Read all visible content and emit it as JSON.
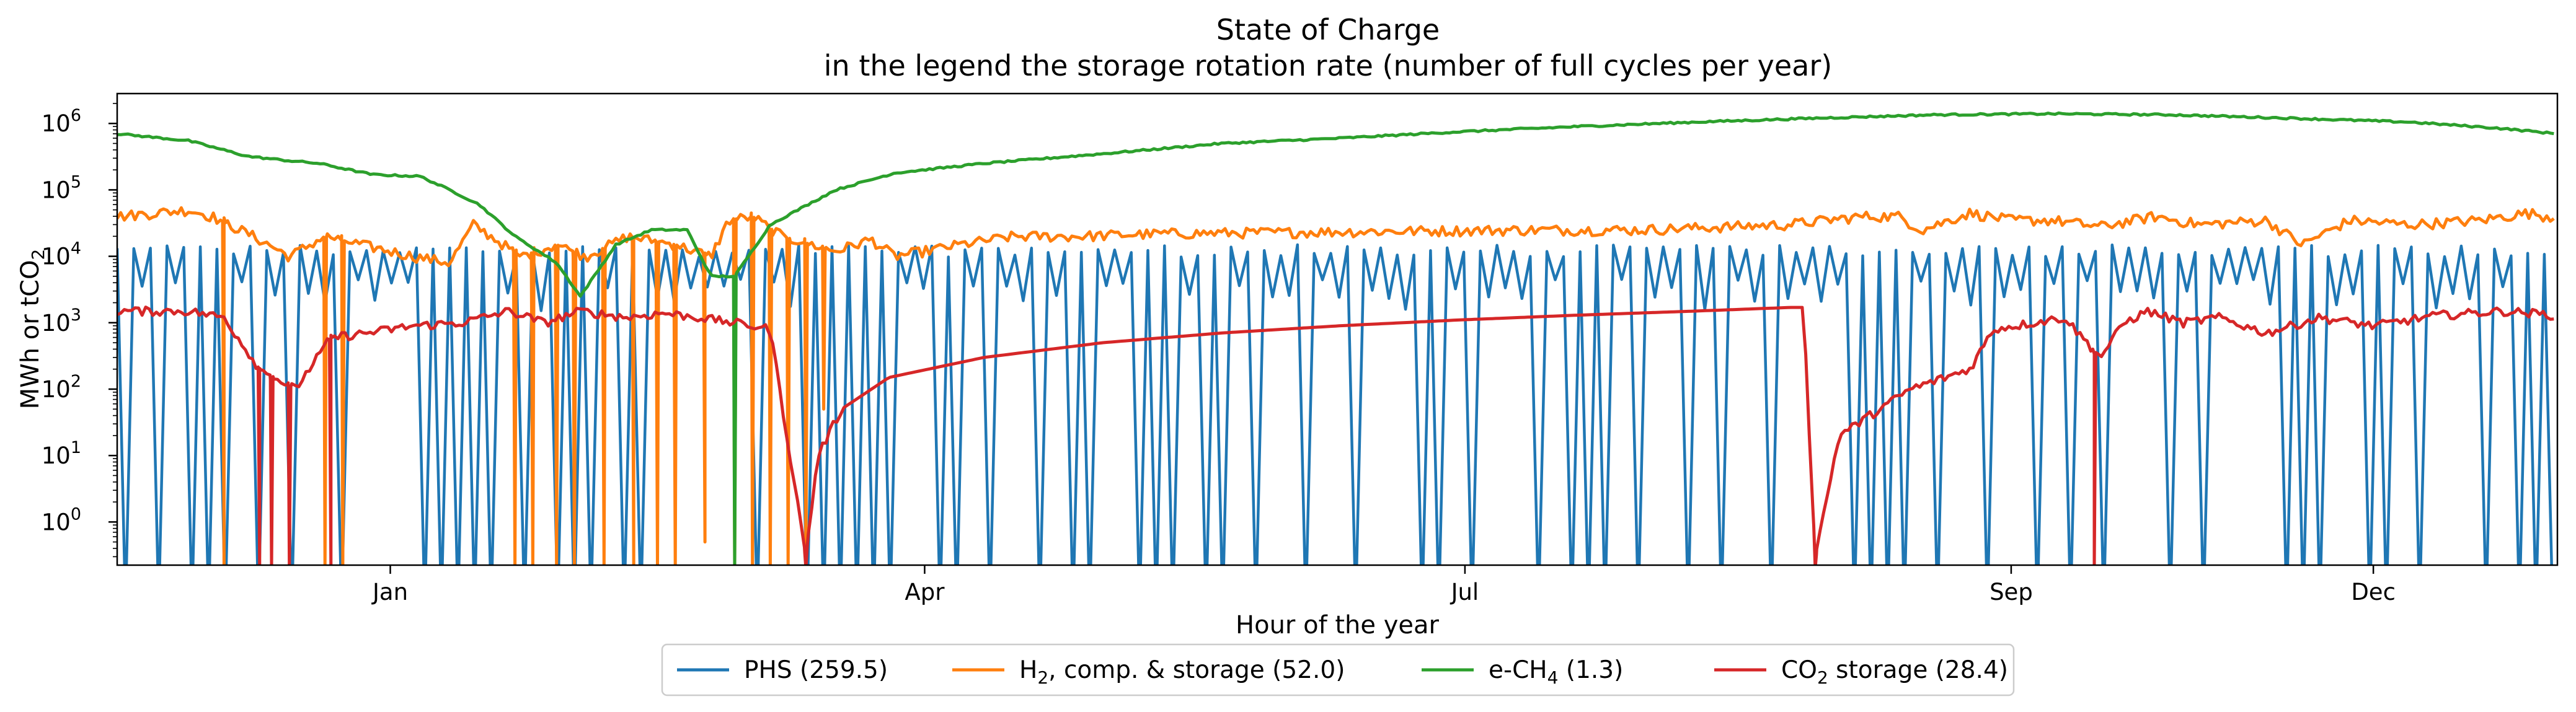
{
  "chart_data": {
    "type": "line",
    "title": "State of Charge",
    "subtitle": "in the legend the storage rotation rate (number of full cycles per year)",
    "xlabel": "Hour of the year",
    "ylabel": {
      "text": "MWh or tCO",
      "sub": "2"
    },
    "yscale": "log",
    "ylim_exponent": [
      -0.65,
      6.45
    ],
    "yticks": [
      {
        "base": "10",
        "exp": "0",
        "value": 1
      },
      {
        "base": "10",
        "exp": "1",
        "value": 10
      },
      {
        "base": "10",
        "exp": "2",
        "value": 100
      },
      {
        "base": "10",
        "exp": "3",
        "value": 1000
      },
      {
        "base": "10",
        "exp": "4",
        "value": 10000
      },
      {
        "base": "10",
        "exp": "5",
        "value": 100000
      },
      {
        "base": "10",
        "exp": "6",
        "value": 1000000
      }
    ],
    "x_range_days": [
      -46,
      365
    ],
    "xticks": [
      {
        "label": "Jan",
        "day": 0
      },
      {
        "label": "Apr",
        "day": 90
      },
      {
        "label": "Jul",
        "day": 181
      },
      {
        "label": "Sep",
        "day": 273
      },
      {
        "label": "Dec",
        "day": 334
      }
    ],
    "grid": false,
    "legend_position": "bottom-center",
    "series": [
      {
        "name": "PHS (259.5)",
        "label_parts": [
          "PHS (259.5)"
        ],
        "color": "#1f77b4",
        "pattern": "daily cycling between about 3e3 and 1.5e4, frequent dips to near 0",
        "upper_envelope": 15000,
        "lower_envelope": 3000,
        "cycle_days": 2.8,
        "deep_dip_prob": 0.5
      },
      {
        "name": "H2, comp. & storage (52.0)",
        "label_parts": [
          "H",
          "2",
          ", comp. & storage (52.0)"
        ],
        "color": "#ff7f0e",
        "points": [
          [
            -46,
            40000
          ],
          [
            -34,
            50000
          ],
          [
            -30,
            40000
          ],
          [
            -23,
            20000
          ],
          [
            -17,
            10000
          ],
          [
            -11,
            20000
          ],
          [
            -5,
            15000
          ],
          [
            4,
            10000
          ],
          [
            10,
            8000
          ],
          [
            14,
            30000
          ],
          [
            22,
            10000
          ],
          [
            28,
            15000
          ],
          [
            33,
            10000
          ],
          [
            40,
            20000
          ],
          [
            48,
            15000
          ],
          [
            54,
            10000
          ],
          [
            57,
            35000
          ],
          [
            61,
            40000
          ],
          [
            66,
            20000
          ],
          [
            75,
            12000
          ],
          [
            81,
            18000
          ],
          [
            85,
            10000
          ],
          [
            90,
            12000
          ],
          [
            96,
            15000
          ],
          [
            105,
            20000
          ],
          [
            115,
            20000
          ],
          [
            130,
            22000
          ],
          [
            150,
            23000
          ],
          [
            170,
            24000
          ],
          [
            190,
            25000
          ],
          [
            210,
            25000
          ],
          [
            235,
            30000
          ],
          [
            248,
            40000
          ],
          [
            254,
            40000
          ],
          [
            258,
            25000
          ],
          [
            266,
            45000
          ],
          [
            273,
            35000
          ],
          [
            280,
            35000
          ],
          [
            288,
            28000
          ],
          [
            297,
            40000
          ],
          [
            305,
            30000
          ],
          [
            316,
            35000
          ],
          [
            322,
            15000
          ],
          [
            330,
            35000
          ],
          [
            340,
            30000
          ],
          [
            352,
            35000
          ],
          [
            360,
            45000
          ],
          [
            365,
            38000
          ]
        ],
        "dips": [
          [
            -28,
            0.2
          ],
          [
            -11,
            0.2
          ],
          [
            -8,
            0.2
          ],
          [
            21,
            0.2
          ],
          [
            24,
            0.2
          ],
          [
            28,
            0.2
          ],
          [
            31,
            0.2
          ],
          [
            36,
            0.2
          ],
          [
            41,
            0.2
          ],
          [
            45,
            0.2
          ],
          [
            48,
            0.2
          ],
          [
            53,
            0.5
          ],
          [
            58,
            0.2
          ],
          [
            61,
            0.2
          ],
          [
            64,
            0.2
          ],
          [
            67,
            0.2
          ],
          [
            70,
            0.2
          ],
          [
            73,
            50
          ]
        ]
      },
      {
        "name": "e-CH4 (1.3)",
        "label_parts": [
          "e-CH",
          "4",
          " (1.3)"
        ],
        "color": "#2ca02c",
        "points": [
          [
            -46,
            700000
          ],
          [
            -34,
            550000
          ],
          [
            -24,
            320000
          ],
          [
            -18,
            280000
          ],
          [
            -12,
            250000
          ],
          [
            -3,
            170000
          ],
          [
            5,
            160000
          ],
          [
            10,
            100000
          ],
          [
            15,
            60000
          ],
          [
            21,
            20000
          ],
          [
            28,
            8000
          ],
          [
            32,
            2500
          ],
          [
            38,
            15000
          ],
          [
            44,
            25000
          ],
          [
            50,
            25000
          ],
          [
            54,
            5000
          ],
          [
            58,
            5000
          ],
          [
            64,
            30000
          ],
          [
            75,
            100000
          ],
          [
            85,
            180000
          ],
          [
            100,
            250000
          ],
          [
            120,
            350000
          ],
          [
            140,
            500000
          ],
          [
            160,
            600000
          ],
          [
            180,
            750000
          ],
          [
            200,
            900000
          ],
          [
            220,
            1050000
          ],
          [
            240,
            1200000
          ],
          [
            260,
            1350000
          ],
          [
            280,
            1400000
          ],
          [
            300,
            1350000
          ],
          [
            320,
            1200000
          ],
          [
            340,
            1050000
          ],
          [
            355,
            850000
          ],
          [
            365,
            700000
          ]
        ],
        "dips": [
          [
            58,
            0.2
          ]
        ]
      },
      {
        "name": "CO2 storage (28.4)",
        "label_parts": [
          "CO",
          "2",
          " storage (28.4)"
        ],
        "color": "#d62728",
        "points": [
          [
            -46,
            1500
          ],
          [
            -40,
            1500
          ],
          [
            -34,
            1500
          ],
          [
            -28,
            1200
          ],
          [
            -22,
            200
          ],
          [
            -16,
            100
          ],
          [
            -10,
            600
          ],
          [
            -4,
            700
          ],
          [
            4,
            900
          ],
          [
            12,
            1000
          ],
          [
            20,
            1500
          ],
          [
            26,
            1000
          ],
          [
            32,
            1500
          ],
          [
            40,
            1200
          ],
          [
            46,
            1400
          ],
          [
            52,
            1200
          ],
          [
            58,
            1000
          ],
          [
            64,
            800
          ],
          [
            70,
            0.3
          ],
          [
            72,
            10
          ],
          [
            76,
            50
          ],
          [
            84,
            150
          ],
          [
            100,
            300
          ],
          [
            120,
            500
          ],
          [
            140,
            700
          ],
          [
            160,
            900
          ],
          [
            180,
            1100
          ],
          [
            200,
            1300
          ],
          [
            220,
            1500
          ],
          [
            236,
            1700
          ],
          [
            238,
            1700
          ],
          [
            240,
            0.3
          ],
          [
            244,
            20
          ],
          [
            256,
            100
          ],
          [
            266,
            200
          ],
          [
            270,
            800
          ],
          [
            282,
            1200
          ],
          [
            288,
            300
          ],
          [
            292,
            1000
          ],
          [
            296,
            1500
          ],
          [
            302,
            1000
          ],
          [
            308,
            1200
          ],
          [
            316,
            700
          ],
          [
            325,
            1200
          ],
          [
            334,
            900
          ],
          [
            345,
            1300
          ],
          [
            356,
            1500
          ],
          [
            365,
            1300
          ]
        ],
        "dips": [
          [
            -22,
            0.2
          ],
          [
            -20,
            0.2
          ],
          [
            -17,
            0.2
          ],
          [
            -10,
            0.2
          ],
          [
            70,
            0.2
          ],
          [
            240,
            0.2
          ],
          [
            287,
            0.2
          ]
        ]
      }
    ]
  }
}
